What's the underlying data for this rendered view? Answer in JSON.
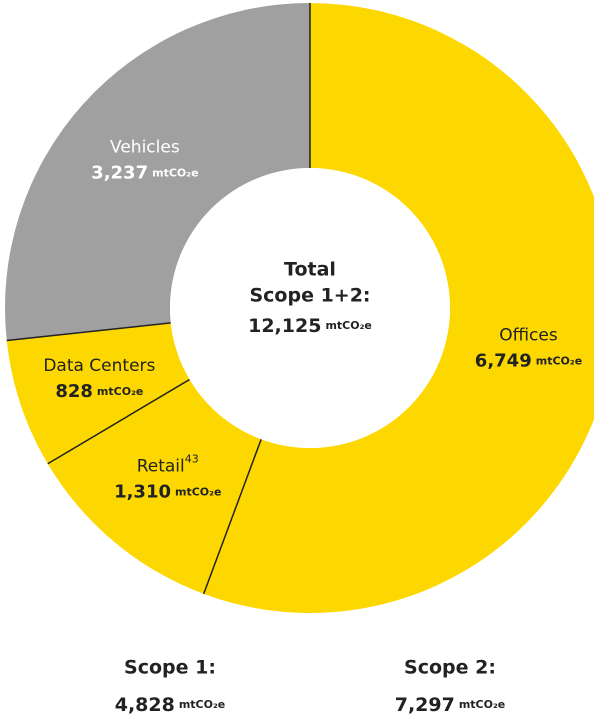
{
  "chart_data": {
    "type": "donut",
    "categories": [
      "Offices",
      "Retail",
      "Data Centers",
      "Vehicles"
    ],
    "footnotes": [
      null,
      "43",
      null,
      null
    ],
    "values": [
      6749,
      1310,
      828,
      3237
    ],
    "value_labels": [
      "6,749",
      "1,310",
      "828",
      "3,237"
    ],
    "colors": [
      "#fdd800",
      "#fdd800",
      "#fdd800",
      "#a0a0a0"
    ],
    "label_colors": [
      "#222222",
      "#222222",
      "#222222",
      "#ffffff"
    ],
    "unit": "mtCO₂e",
    "center_title": [
      "Total",
      "Scope 1+2:"
    ],
    "total": {
      "value": 12125,
      "label": "12,125"
    },
    "scopes": [
      {
        "name": "Scope 1:",
        "value": 4828,
        "value_label": "4,828"
      },
      {
        "name": "Scope 2:",
        "value": 7297,
        "value_label": "7,297"
      }
    ]
  }
}
